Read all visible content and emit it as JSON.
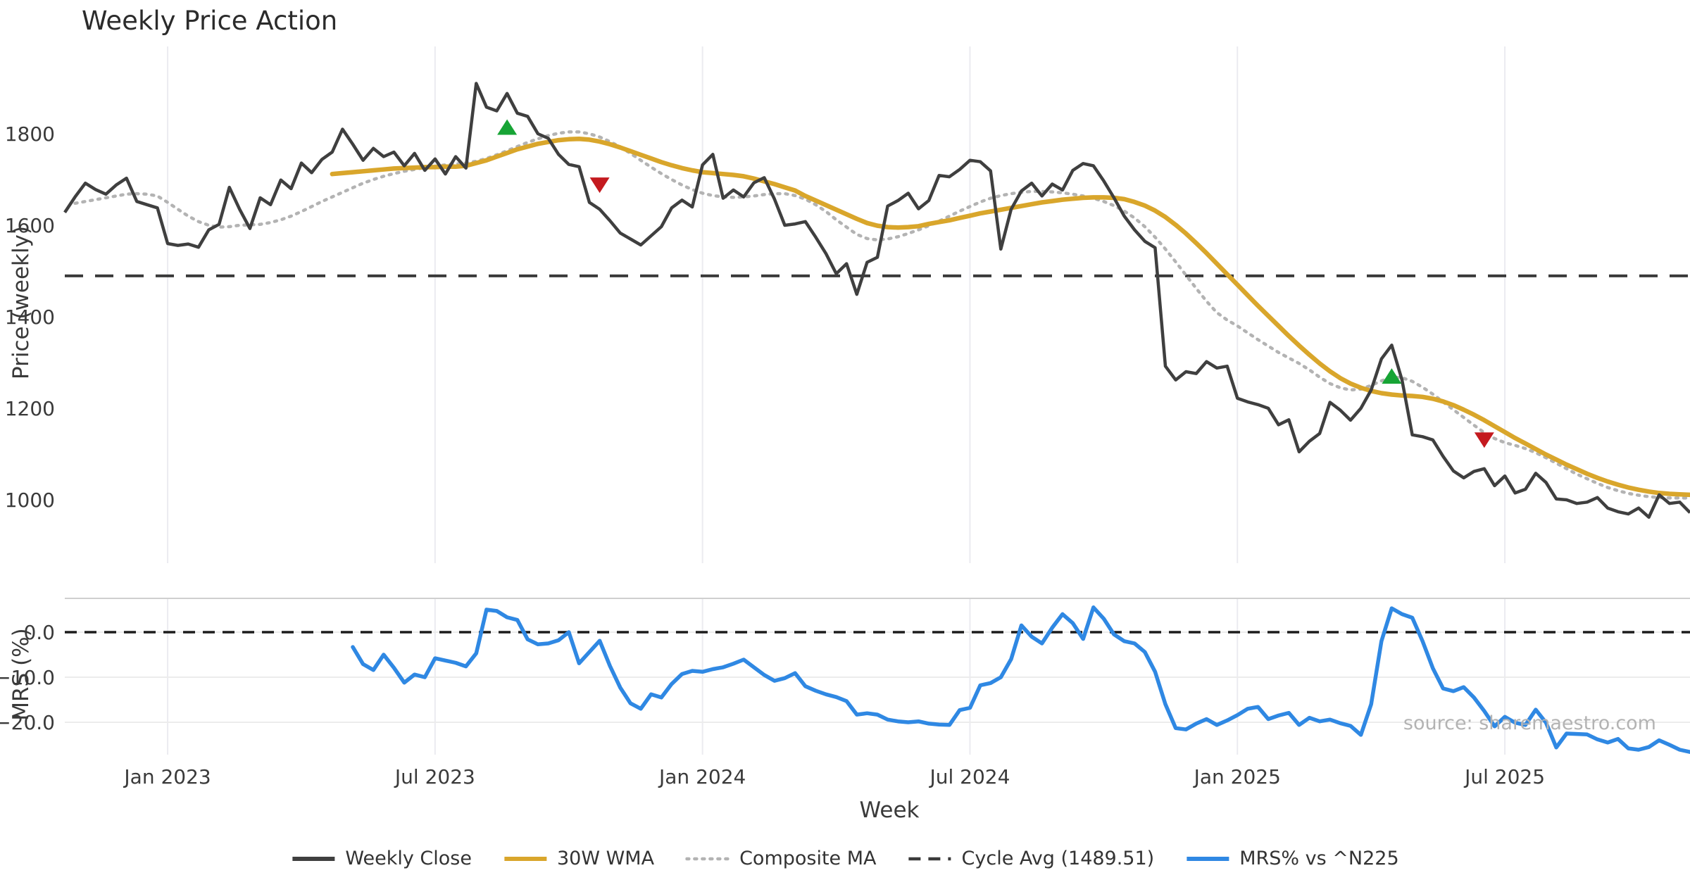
{
  "title": "Weekly Price Action",
  "source_note": "source: sharemaestro.com",
  "colors": {
    "weekly_close": "#3f3f3f",
    "wma_30w": "#d9a62b",
    "composite_ma": "#b3b3b3",
    "cycle_avg": "#3a3a3a",
    "mrs": "#2f88e3",
    "buy_marker": "#17a435",
    "sell_marker": "#c41a1f",
    "gridline": "#ebebf0",
    "panel_line": "#cfcfcf",
    "mrs_gridline": "#ececec",
    "text": "#3a3a3a",
    "muted_text": "#b3b3b3"
  },
  "axes": {
    "x_label": "Week",
    "x_ticks": [
      {
        "label": "Jan 2023",
        "week": 10
      },
      {
        "label": "Jul 2023",
        "week": 36
      },
      {
        "label": "Jan 2024",
        "week": 62
      },
      {
        "label": "Jul 2024",
        "week": 88
      },
      {
        "label": "Jan 2025",
        "week": 114
      },
      {
        "label": "Jul 2025",
        "week": 140
      }
    ],
    "price_axis": {
      "label": "Price (weekly)",
      "ticks": [
        1800,
        1600,
        1400,
        1200,
        1000
      ]
    },
    "mrs_axis": {
      "label": "MRS (%)",
      "ticks": [
        {
          "label": "0.0",
          "value": 0
        },
        {
          "label": "−10.0",
          "value": -10
        },
        {
          "label": "−20.0",
          "value": -20
        }
      ]
    }
  },
  "legend": {
    "items": [
      {
        "label": "Weekly Close",
        "swatch": "solid",
        "color": "#3f3f3f"
      },
      {
        "label": "30W WMA",
        "swatch": "solid",
        "color": "#d9a62b"
      },
      {
        "label": "Composite MA",
        "swatch": "dotted",
        "color": "#b3b3b3"
      },
      {
        "label": "Cycle Avg (1489.51)",
        "swatch": "dashed",
        "color": "#3a3a3a"
      },
      {
        "label": "MRS% vs ^N225",
        "swatch": "solid",
        "color": "#2f88e3"
      }
    ]
  },
  "chart_data": {
    "type": "line",
    "x_unit": "week index (weekly bars, ~Nov 2022 – Nov 2025)",
    "weeks_total": 159,
    "panels": [
      {
        "name": "price",
        "ylabel": "Price (weekly)",
        "ylim": [
          905,
          1990
        ],
        "cycle_avg": 1489.51,
        "series": [
          {
            "name": "Weekly Close",
            "style": "solid",
            "color": "#3f3f3f",
            "start_week": 0,
            "values": [
              1628,
              1662,
              1692,
              1678,
              1668,
              1688,
              1703,
              1652,
              1645,
              1638,
              1560,
              1556,
              1559,
              1552,
              1590,
              1602,
              1683,
              1635,
              1593,
              1660,
              1645,
              1699,
              1680,
              1736,
              1715,
              1744,
              1760,
              1810,
              1777,
              1742,
              1768,
              1750,
              1760,
              1730,
              1757,
              1720,
              1745,
              1712,
              1750,
              1725,
              1910,
              1858,
              1850,
              1888,
              1845,
              1838,
              1800,
              1790,
              1755,
              1733,
              1728,
              1650,
              1635,
              1610,
              1583,
              1570,
              1557,
              1577,
              1597,
              1638,
              1655,
              1640,
              1732,
              1755,
              1659,
              1677,
              1662,
              1693,
              1704,
              1657,
              1600,
              1603,
              1608,
              1574,
              1538,
              1494,
              1516,
              1449,
              1519,
              1530,
              1642,
              1654,
              1670,
              1636,
              1654,
              1709,
              1706,
              1722,
              1742,
              1739,
              1719,
              1548,
              1635,
              1675,
              1692,
              1664,
              1690,
              1677,
              1720,
              1735,
              1730,
              1697,
              1660,
              1620,
              1590,
              1565,
              1551,
              1292,
              1262,
              1280,
              1276,
              1302,
              1288,
              1292,
              1222,
              1214,
              1208,
              1200,
              1164,
              1175,
              1105,
              1128,
              1145,
              1213,
              1196,
              1174,
              1200,
              1240,
              1308,
              1338,
              1262,
              1142,
              1138,
              1131,
              1095,
              1063,
              1048,
              1062,
              1068,
              1031,
              1052,
              1015,
              1023,
              1058,
              1038,
              1002,
              1000,
              992,
              995,
              1005,
              982,
              974,
              969,
              982,
              962,
              1011,
              992,
              995,
              972
            ]
          },
          {
            "name": "30W WMA",
            "style": "solid",
            "color": "#d9a62b",
            "start_week": 26,
            "values": [
              1712,
              1714,
              1716,
              1718,
              1720,
              1722,
              1724,
              1725,
              1726,
              1727,
              1727,
              1728,
              1728,
              1730,
              1736,
              1742,
              1750,
              1758,
              1766,
              1772,
              1778,
              1782,
              1786,
              1788,
              1789,
              1787,
              1783,
              1777,
              1770,
              1762,
              1754,
              1746,
              1738,
              1731,
              1725,
              1720,
              1716,
              1714,
              1712,
              1710,
              1707,
              1702,
              1696,
              1690,
              1683,
              1676,
              1664,
              1654,
              1644,
              1634,
              1624,
              1614,
              1605,
              1599,
              1596,
              1595,
              1596,
              1598,
              1603,
              1607,
              1611,
              1616,
              1621,
              1626,
              1630,
              1634,
              1638,
              1642,
              1646,
              1650,
              1653,
              1656,
              1658,
              1660,
              1661,
              1661,
              1660,
              1657,
              1651,
              1643,
              1632,
              1618,
              1601,
              1582,
              1561,
              1539,
              1516,
              1493,
              1470,
              1447,
              1424,
              1402,
              1380,
              1358,
              1337,
              1317,
              1298,
              1281,
              1266,
              1254,
              1245,
              1238,
              1233,
              1230,
              1228,
              1227,
              1225,
              1221,
              1215,
              1207,
              1197,
              1186,
              1174,
              1161,
              1148,
              1135,
              1123,
              1111,
              1099,
              1088,
              1077,
              1067,
              1057,
              1048,
              1040,
              1033,
              1027,
              1022,
              1018,
              1015,
              1013,
              1012,
              1011
            ]
          },
          {
            "name": "Composite MA",
            "style": "dotted",
            "color": "#b3b3b3",
            "start_week": 1,
            "values": [
              1648,
              1652,
              1656,
              1660,
              1664,
              1668,
              1669,
              1668,
              1664,
              1650,
              1635,
              1620,
              1608,
              1600,
              1596,
              1597,
              1600,
              1601,
              1602,
              1606,
              1612,
              1620,
              1630,
              1641,
              1652,
              1662,
              1672,
              1682,
              1692,
              1700,
              1707,
              1713,
              1718,
              1722,
              1726,
              1729,
              1732,
              1734,
              1736,
              1740,
              1746,
              1754,
              1763,
              1772,
              1781,
              1789,
              1796,
              1801,
              1804,
              1804,
              1800,
              1793,
              1783,
              1771,
              1757,
              1742,
              1727,
              1713,
              1700,
              1688,
              1678,
              1670,
              1665,
              1662,
              1661,
              1662,
              1664,
              1667,
              1669,
              1669,
              1665,
              1657,
              1645,
              1630,
              1612,
              1596,
              1580,
              1571,
              1568,
              1570,
              1575,
              1582,
              1590,
              1599,
              1609,
              1620,
              1631,
              1641,
              1651,
              1659,
              1665,
              1669,
              1672,
              1674,
              1674,
              1673,
              1671,
              1668,
              1664,
              1659,
              1652,
              1643,
              1631,
              1616,
              1597,
              1574,
              1548,
              1520,
              1491,
              1462,
              1434,
              1409,
              1393,
              1380,
              1365,
              1350,
              1336,
              1322,
              1310,
              1298,
              1284,
              1268,
              1254,
              1245,
              1240,
              1242,
              1250,
              1260,
              1268,
              1267,
              1259,
              1246,
              1231,
              1214,
              1197,
              1180,
              1163,
              1147,
              1134,
              1125,
              1119,
              1112,
              1103,
              1092,
              1080,
              1068,
              1056,
              1046,
              1036,
              1027,
              1020,
              1014,
              1010,
              1007,
              1005,
              1004,
              1004,
              1004
            ]
          },
          {
            "name": "Cycle Avg",
            "style": "dashed",
            "color": "#3a3a3a",
            "value": 1489.51
          }
        ],
        "markers": {
          "buy": [
            {
              "week": 43,
              "value": 1813
            },
            {
              "week": 129,
              "value": 1269
            }
          ],
          "sell": [
            {
              "week": 52,
              "value": 1689
            },
            {
              "week": 138,
              "value": 1132
            }
          ]
        }
      },
      {
        "name": "mrs",
        "ylabel": "MRS (%)",
        "ylim": [
          -27.5,
          7.5
        ],
        "zero_line": 0,
        "series": [
          {
            "name": "MRS% vs ^N225",
            "style": "solid",
            "color": "#2f88e3",
            "start_week": 28,
            "values": [
              -3.3,
              -7.1,
              -8.4,
              -5.0,
              -7.9,
              -11.2,
              -9.4,
              -10.0,
              -5.8,
              -6.3,
              -6.8,
              -7.6,
              -4.7,
              5.0,
              4.7,
              3.3,
              2.7,
              -1.6,
              -2.7,
              -2.5,
              -1.8,
              0.0,
              -6.9,
              -4.4,
              -1.9,
              -7.5,
              -12.3,
              -15.8,
              -17.0,
              -13.8,
              -14.5,
              -11.5,
              -9.3,
              -8.6,
              -8.8,
              -8.2,
              -7.8,
              -7.0,
              -6.1,
              -7.8,
              -9.5,
              -10.8,
              -10.2,
              -9.1,
              -12.0,
              -13.0,
              -13.8,
              -14.4,
              -15.3,
              -18.3,
              -18.0,
              -18.3,
              -19.4,
              -19.8,
              -20.0,
              -19.8,
              -20.3,
              -20.5,
              -20.6,
              -17.3,
              -16.8,
              -11.8,
              -11.3,
              -10.0,
              -6.0,
              1.5,
              -1.0,
              -2.5,
              1.0,
              4.0,
              2.0,
              -1.5,
              5.5,
              3.0,
              -0.5,
              -2.0,
              -2.5,
              -4.4,
              -8.8,
              -16.0,
              -21.3,
              -21.6,
              -20.3,
              -19.3,
              -20.6,
              -19.6,
              -18.4,
              -17.0,
              -16.6,
              -19.3,
              -18.5,
              -17.9,
              -20.6,
              -19.0,
              -19.8,
              -19.4,
              -20.2,
              -20.8,
              -22.8,
              -16.0,
              -2.0,
              5.3,
              4.0,
              3.2,
              -2.0,
              -8.0,
              -12.5,
              -13.1,
              -12.2,
              -14.5,
              -17.5,
              -20.9,
              -18.8,
              -20.1,
              -20.6,
              -17.2,
              -20.1,
              -25.6,
              -22.5,
              -22.6,
              -22.7,
              -23.8,
              -24.5,
              -23.7,
              -25.8,
              -26.1,
              -25.5,
              -24.0,
              -25.0,
              -26.1,
              -26.6
            ]
          }
        ]
      }
    ]
  }
}
